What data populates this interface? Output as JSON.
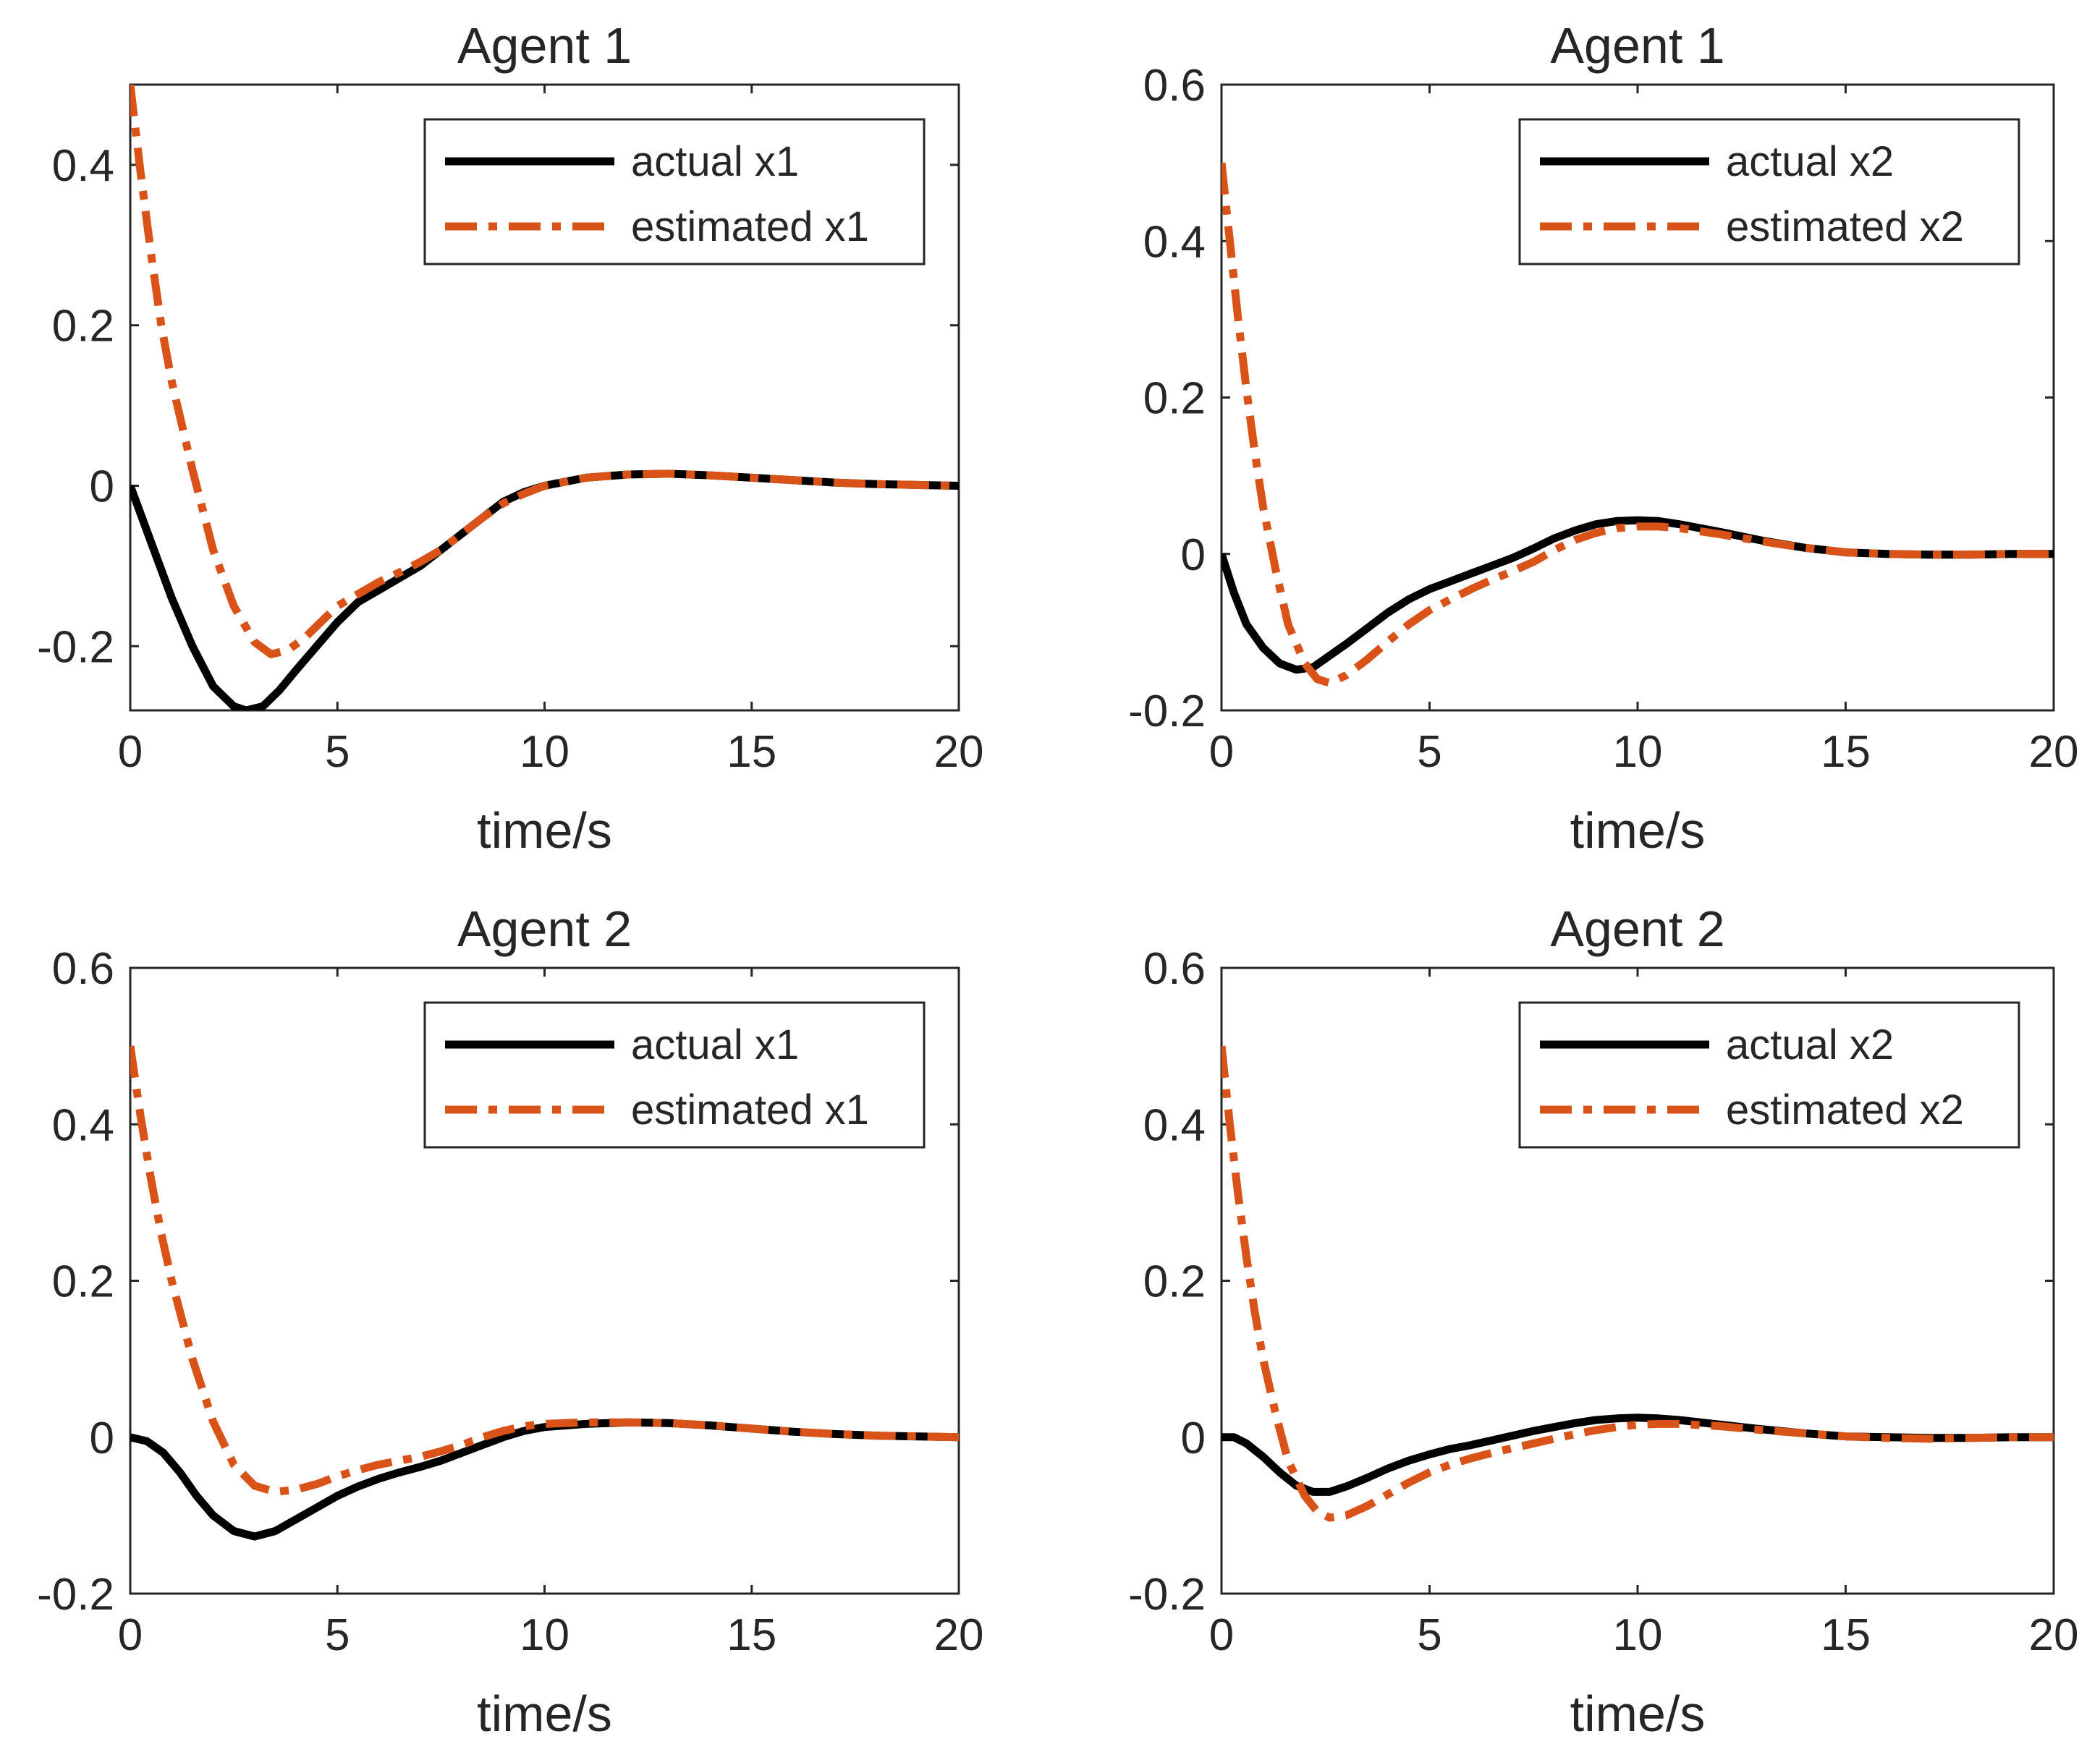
{
  "colors": {
    "actual": "#000000",
    "estimated": "#D95319",
    "axes": "#262626",
    "background": "#ffffff"
  },
  "chart_data": [
    {
      "type": "line",
      "title": "Agent 1",
      "xlabel": "time/s",
      "ylabel": "",
      "xlim": [
        0,
        20
      ],
      "ylim": [
        -0.28,
        0.5
      ],
      "xticks": [
        0,
        5,
        10,
        15,
        20
      ],
      "xtick_labels": [
        "0",
        "5",
        "10",
        "15",
        "20"
      ],
      "yticks": [
        -0.2,
        0,
        0.2,
        0.4
      ],
      "ytick_labels": [
        "-0.2",
        "0",
        "0.2",
        "0.4"
      ],
      "grid": false,
      "legend_position": "top-right",
      "series": [
        {
          "name": "actual x1",
          "style": "solid",
          "x": [
            0,
            0.5,
            1,
            1.5,
            2,
            2.5,
            2.8,
            3.2,
            3.6,
            4,
            4.5,
            5,
            5.5,
            6,
            6.5,
            7,
            7.5,
            8,
            8.5,
            9,
            9.5,
            10,
            11,
            12,
            13,
            14,
            15,
            16,
            17,
            18,
            19,
            20
          ],
          "y": [
            0,
            -0.07,
            -0.14,
            -0.2,
            -0.25,
            -0.275,
            -0.28,
            -0.275,
            -0.255,
            -0.23,
            -0.2,
            -0.17,
            -0.145,
            -0.13,
            -0.115,
            -0.1,
            -0.08,
            -0.06,
            -0.04,
            -0.02,
            -0.008,
            0,
            0.01,
            0.014,
            0.015,
            0.013,
            0.01,
            0.007,
            0.004,
            0.002,
            0.001,
            0
          ]
        },
        {
          "name": "estimated x1",
          "style": "dashdot",
          "x": [
            0,
            0.25,
            0.5,
            0.75,
            1,
            1.5,
            2,
            2.5,
            3,
            3.4,
            3.8,
            4.2,
            4.6,
            5,
            5.5,
            6,
            6.5,
            7,
            7.5,
            8,
            8.5,
            9,
            9.5,
            10,
            11,
            12,
            13,
            14,
            15,
            16,
            17,
            18,
            19,
            20
          ],
          "y": [
            0.5,
            0.39,
            0.29,
            0.2,
            0.13,
            0.02,
            -0.08,
            -0.15,
            -0.195,
            -0.21,
            -0.205,
            -0.19,
            -0.17,
            -0.15,
            -0.135,
            -0.12,
            -0.108,
            -0.095,
            -0.08,
            -0.06,
            -0.04,
            -0.022,
            -0.01,
            0,
            0.01,
            0.014,
            0.015,
            0.013,
            0.01,
            0.007,
            0.004,
            0.002,
            0.001,
            0
          ]
        }
      ]
    },
    {
      "type": "line",
      "title": "Agent 1",
      "xlabel": "time/s",
      "ylabel": "",
      "xlim": [
        0,
        20
      ],
      "ylim": [
        -0.2,
        0.6
      ],
      "xticks": [
        0,
        5,
        10,
        15,
        20
      ],
      "xtick_labels": [
        "0",
        "5",
        "10",
        "15",
        "20"
      ],
      "yticks": [
        -0.2,
        0,
        0.2,
        0.4,
        0.6
      ],
      "ytick_labels": [
        "-0.2",
        "0",
        "0.2",
        "0.4",
        "0.6"
      ],
      "grid": false,
      "legend_position": "top-right",
      "series": [
        {
          "name": "actual x2",
          "style": "solid",
          "x": [
            0,
            0.3,
            0.6,
            1,
            1.4,
            1.8,
            2.2,
            2.6,
            3,
            3.5,
            4,
            4.5,
            5,
            5.5,
            6,
            6.5,
            7,
            7.5,
            8,
            8.5,
            9,
            9.5,
            10,
            10.5,
            11,
            12,
            13,
            14,
            15,
            16,
            17,
            18,
            19,
            20
          ],
          "y": [
            0,
            -0.05,
            -0.09,
            -0.12,
            -0.14,
            -0.148,
            -0.145,
            -0.13,
            -0.115,
            -0.095,
            -0.075,
            -0.058,
            -0.045,
            -0.035,
            -0.025,
            -0.015,
            -0.005,
            0.007,
            0.02,
            0.03,
            0.038,
            0.042,
            0.043,
            0.042,
            0.038,
            0.028,
            0.017,
            0.008,
            0.002,
            0,
            -0.001,
            -0.001,
            0,
            0
          ]
        },
        {
          "name": "estimated x2",
          "style": "dashdot",
          "x": [
            0,
            0.2,
            0.4,
            0.6,
            0.8,
            1,
            1.3,
            1.6,
            2,
            2.3,
            2.6,
            3,
            3.5,
            4,
            4.5,
            5,
            5.5,
            6,
            6.5,
            7,
            7.5,
            8,
            8.5,
            9,
            9.5,
            10,
            10.5,
            11,
            12,
            13,
            14,
            15,
            16,
            17,
            18,
            19,
            20
          ],
          "y": [
            0.5,
            0.4,
            0.3,
            0.21,
            0.13,
            0.06,
            -0.02,
            -0.09,
            -0.14,
            -0.16,
            -0.165,
            -0.155,
            -0.135,
            -0.112,
            -0.09,
            -0.072,
            -0.058,
            -0.045,
            -0.033,
            -0.022,
            -0.01,
            0.005,
            0.018,
            0.027,
            0.033,
            0.035,
            0.035,
            0.033,
            0.025,
            0.016,
            0.008,
            0.002,
            0,
            -0.001,
            -0.001,
            0,
            0
          ]
        }
      ]
    },
    {
      "type": "line",
      "title": "Agent 2",
      "xlabel": "time/s",
      "ylabel": "",
      "xlim": [
        0,
        20
      ],
      "ylim": [
        -0.2,
        0.6
      ],
      "xticks": [
        0,
        5,
        10,
        15,
        20
      ],
      "xtick_labels": [
        "0",
        "5",
        "10",
        "15",
        "20"
      ],
      "yticks": [
        -0.2,
        0,
        0.2,
        0.4,
        0.6
      ],
      "ytick_labels": [
        "-0.2",
        "0",
        "0.2",
        "0.4",
        "0.6"
      ],
      "grid": false,
      "legend_position": "top-right",
      "series": [
        {
          "name": "actual x1",
          "style": "solid",
          "x": [
            0,
            0.4,
            0.8,
            1.2,
            1.6,
            2,
            2.5,
            3,
            3.5,
            4,
            4.5,
            5,
            5.5,
            6,
            6.5,
            7,
            7.5,
            8,
            8.5,
            9,
            9.5,
            10,
            11,
            12,
            13,
            14,
            15,
            16,
            17,
            18,
            19,
            20
          ],
          "y": [
            0,
            -0.005,
            -0.02,
            -0.045,
            -0.075,
            -0.1,
            -0.12,
            -0.127,
            -0.12,
            -0.105,
            -0.09,
            -0.075,
            -0.063,
            -0.053,
            -0.045,
            -0.038,
            -0.03,
            -0.02,
            -0.01,
            0,
            0.008,
            0.013,
            0.017,
            0.019,
            0.018,
            0.015,
            0.011,
            0.007,
            0.004,
            0.002,
            0.001,
            0
          ]
        },
        {
          "name": "estimated x1",
          "style": "dashdot",
          "x": [
            0,
            0.25,
            0.5,
            0.75,
            1,
            1.5,
            2,
            2.5,
            3,
            3.5,
            4,
            4.5,
            5,
            5.5,
            6,
            6.5,
            7,
            7.5,
            8,
            8.5,
            9,
            9.5,
            10,
            11,
            12,
            13,
            14,
            15,
            16,
            17,
            18,
            19,
            20
          ],
          "y": [
            0.5,
            0.41,
            0.33,
            0.26,
            0.2,
            0.1,
            0.02,
            -0.035,
            -0.062,
            -0.07,
            -0.067,
            -0.06,
            -0.05,
            -0.042,
            -0.035,
            -0.03,
            -0.025,
            -0.018,
            -0.01,
            0,
            0.008,
            0.014,
            0.017,
            0.019,
            0.019,
            0.018,
            0.015,
            0.011,
            0.007,
            0.004,
            0.002,
            0.001,
            0
          ]
        }
      ]
    },
    {
      "type": "line",
      "title": "Agent 2",
      "xlabel": "time/s",
      "ylabel": "",
      "xlim": [
        0,
        20
      ],
      "ylim": [
        -0.2,
        0.6
      ],
      "xticks": [
        0,
        5,
        10,
        15,
        20
      ],
      "xtick_labels": [
        "0",
        "5",
        "10",
        "15",
        "20"
      ],
      "yticks": [
        -0.2,
        0,
        0.2,
        0.4,
        0.6
      ],
      "ytick_labels": [
        "-0.2",
        "0",
        "0.2",
        "0.4",
        "0.6"
      ],
      "grid": false,
      "legend_position": "top-right",
      "series": [
        {
          "name": "actual x2",
          "style": "solid",
          "x": [
            0,
            0.3,
            0.6,
            1,
            1.4,
            1.8,
            2.2,
            2.6,
            3,
            3.5,
            4,
            4.5,
            5,
            5.5,
            6,
            6.5,
            7,
            7.5,
            8,
            8.5,
            9,
            9.5,
            10,
            10.5,
            11,
            12,
            13,
            14,
            15,
            16,
            17,
            18,
            19,
            20
          ],
          "y": [
            0,
            0,
            -0.008,
            -0.025,
            -0.045,
            -0.062,
            -0.07,
            -0.07,
            -0.063,
            -0.052,
            -0.04,
            -0.03,
            -0.022,
            -0.015,
            -0.01,
            -0.004,
            0.002,
            0.008,
            0.013,
            0.018,
            0.022,
            0.024,
            0.025,
            0.024,
            0.022,
            0.016,
            0.01,
            0.005,
            0.001,
            0,
            -0.001,
            -0.001,
            0,
            0
          ]
        },
        {
          "name": "estimated x2",
          "style": "dashdot",
          "x": [
            0,
            0.2,
            0.4,
            0.6,
            0.8,
            1,
            1.3,
            1.6,
            2,
            2.3,
            2.6,
            3,
            3.5,
            4,
            4.5,
            5,
            5.5,
            6,
            6.5,
            7,
            7.5,
            8,
            8.5,
            9,
            9.5,
            10,
            10.5,
            11,
            12,
            13,
            14,
            15,
            16,
            17,
            18,
            19,
            20
          ],
          "y": [
            0.5,
            0.4,
            0.31,
            0.23,
            0.16,
            0.1,
            0.03,
            -0.03,
            -0.075,
            -0.095,
            -0.103,
            -0.1,
            -0.088,
            -0.073,
            -0.058,
            -0.045,
            -0.035,
            -0.027,
            -0.02,
            -0.014,
            -0.008,
            -0.002,
            0.004,
            0.009,
            0.013,
            0.016,
            0.017,
            0.017,
            0.014,
            0.009,
            0.005,
            0.001,
            -0.001,
            -0.002,
            -0.001,
            0,
            0
          ]
        }
      ]
    }
  ]
}
